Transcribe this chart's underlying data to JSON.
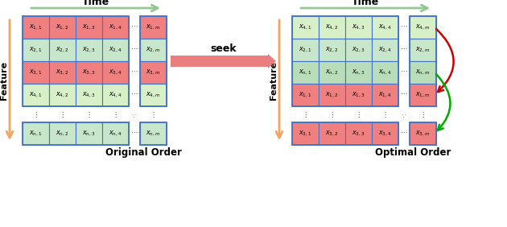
{
  "left_grid": {
    "rows": [
      {
        "labels": [
          "x_{1,1}",
          "x_{1,2}",
          "x_{1,3}",
          "x_{1,4}"
        ],
        "label_last": "x_{1,m}",
        "color": "#F08080"
      },
      {
        "labels": [
          "x_{2,1}",
          "x_{2,2}",
          "x_{2,3}",
          "x_{2,4}"
        ],
        "label_last": "x_{2,m}",
        "color": "#C8E6C9"
      },
      {
        "labels": [
          "x_{3,1}",
          "x_{3,2}",
          "x_{3,3}",
          "x_{3,4}"
        ],
        "label_last": "x_{3,m}",
        "color": "#F08080"
      },
      {
        "labels": [
          "x_{4,1}",
          "x_{4,2}",
          "x_{4,3}",
          "x_{4,4}"
        ],
        "label_last": "x_{4,m}",
        "color": "#D8F0C8"
      }
    ],
    "bottom_row": {
      "labels": [
        "x_{n,1}",
        "x_{n,2}",
        "x_{n,3}",
        "x_{n,4}"
      ],
      "label_last": "x_{n,m}",
      "color": "#C8E6C9"
    }
  },
  "right_grid": {
    "rows": [
      {
        "labels": [
          "x_{4,1}",
          "x_{4,2}",
          "x_{4,3}",
          "x_{4,4}"
        ],
        "label_last": "x_{4,m}",
        "color": "#D8F0C8"
      },
      {
        "labels": [
          "x_{2,1}",
          "x_{2,2}",
          "x_{2,3}",
          "x_{2,4}"
        ],
        "label_last": "x_{2,m}",
        "color": "#C8E6C9"
      },
      {
        "labels": [
          "x_{n,1}",
          "x_{n,2}",
          "x_{n,3}",
          "x_{n,4}"
        ],
        "label_last": "x_{n,m}",
        "color": "#B8DDB8"
      },
      {
        "labels": [
          "x_{1,1}",
          "x_{1,2}",
          "x_{1,3}",
          "x_{1,4}"
        ],
        "label_last": "x_{1,m}",
        "color": "#F08080"
      }
    ],
    "bottom_row": {
      "labels": [
        "x_{3,1}",
        "x_{3,2}",
        "x_{3,3}",
        "x_{3,4}"
      ],
      "label_last": "x_{3,m}",
      "color": "#F08080"
    }
  },
  "cell_border_color": "#4472C4",
  "time_arrow_color": "#90C890",
  "feature_arrow_color": "#F4A460",
  "seek_arrow_color": "#E87070",
  "red_curve_color": "#CC0000",
  "green_curve_color": "#00AA00",
  "fig_w": 6.3,
  "fig_h": 2.82,
  "dpi": 100
}
